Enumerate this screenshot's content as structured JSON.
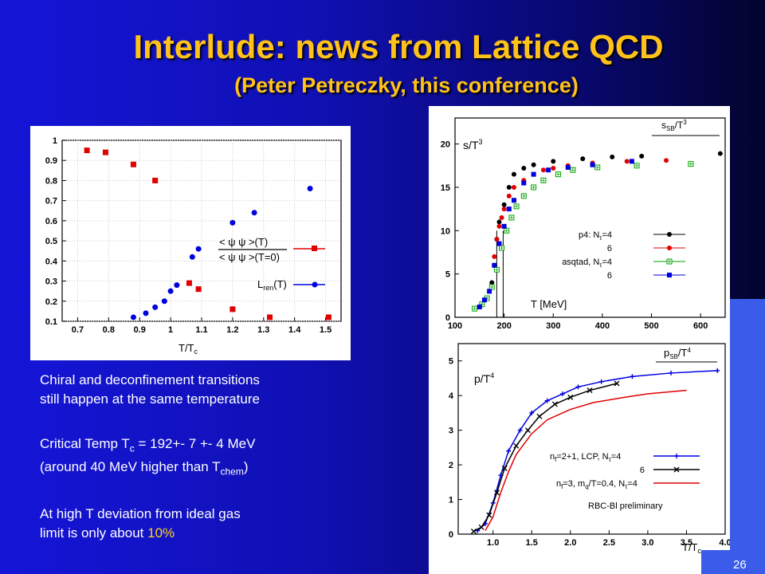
{
  "slide": {
    "title": "Interlude: news from Lattice QCD",
    "subtitle": "(Peter Petreczky, this conference)",
    "page_number": "26"
  },
  "text": {
    "para1_line1": "Chiral and deconfinement transitions",
    "para1_line2": "still happen at the same temperature",
    "para2_prefix": "Critical Temp T",
    "para2_sub": "c",
    "para2_rest": " = 192+- 7 +- 4 MeV",
    "para3_prefix": "(around 40 MeV higher than T",
    "para3_sub": "chem",
    "para3_suffix": ")",
    "para4_line1": "At high T deviation from ideal gas",
    "para4_line2_prefix": "limit is only about ",
    "para4_highlight": "10%"
  },
  "chart_data": [
    {
      "type": "scatter",
      "xlabel": "T/T",
      "xlabel_sub": "c",
      "xlim": [
        0.65,
        1.55
      ],
      "ylim": [
        0.1,
        1.0
      ],
      "xticks": [
        0.7,
        0.8,
        0.9,
        1,
        1.1,
        1.2,
        1.3,
        1.4,
        1.5
      ],
      "xtick_labels": [
        "0.7",
        "0.8",
        "0.9",
        "1",
        "1.1",
        "1.2",
        "1.3",
        "1.4",
        "1.5"
      ],
      "yticks": [
        0.1,
        0.2,
        0.3,
        0.4,
        0.5,
        0.6,
        0.7,
        0.8,
        0.9,
        1.0
      ],
      "ytick_labels": [
        "0.1",
        "0.2",
        "0.3",
        "0.4",
        "0.5",
        "0.6",
        "0.7",
        "0.8",
        "0.9",
        "1"
      ],
      "series": [
        {
          "name": "chiral",
          "color": "#e00000",
          "marker": "square",
          "x": [
            0.73,
            0.79,
            0.88,
            0.95,
            1.06,
            1.09,
            1.2,
            1.32,
            1.51
          ],
          "y": [
            0.95,
            0.94,
            0.88,
            0.8,
            0.29,
            0.26,
            0.16,
            0.12,
            0.12
          ]
        },
        {
          "name": "Lren",
          "color": "#0000e0",
          "marker": "circle",
          "x": [
            0.88,
            0.92,
            0.95,
            0.98,
            1.0,
            1.02,
            1.07,
            1.09,
            1.2,
            1.27,
            1.45
          ],
          "y": [
            0.12,
            0.14,
            0.17,
            0.2,
            0.25,
            0.28,
            0.42,
            0.46,
            0.59,
            0.64,
            0.76
          ]
        }
      ],
      "legend": {
        "entry1_num": "< ψ ψ >(T)",
        "entry1_den": "< ψ ψ >(T=0)",
        "entry2": "L",
        "entry2_sub": "ren",
        "entry2_suffix": "(T)"
      }
    },
    {
      "type": "scatter",
      "ylabel": "s/T",
      "ylabel_sup": "3",
      "xlabel": "T [MeV]",
      "sb_label": "s",
      "sb_label_sub": "SB",
      "sb_label_suffix": "/T",
      "sb_label_sup": "3",
      "xlim": [
        100,
        650
      ],
      "ylim": [
        0,
        23
      ],
      "xticks": [
        100,
        200,
        300,
        400,
        500,
        600
      ],
      "xtick_labels": [
        "100",
        "200",
        "300",
        "400",
        "500",
        "600"
      ],
      "yticks": [
        0,
        5,
        10,
        15,
        20
      ],
      "ytick_labels": [
        "0",
        "5",
        "10",
        "15",
        "20"
      ],
      "series": [
        {
          "name": "p4: Nτ=4",
          "color": "#000000",
          "marker": "circle",
          "x": [
            175,
            180,
            185,
            190,
            200,
            210,
            220,
            240,
            260,
            300,
            360,
            420,
            480,
            640
          ],
          "y": [
            4.0,
            6.0,
            9.0,
            11.0,
            13.0,
            15.0,
            16.5,
            17.2,
            17.6,
            18.0,
            18.3,
            18.5,
            18.6,
            18.9
          ]
        },
        {
          "name": "6",
          "color": "#e00000",
          "marker": "circle",
          "x": [
            180,
            185,
            190,
            195,
            200,
            210,
            220,
            240,
            260,
            280,
            300,
            330,
            380,
            450,
            530
          ],
          "y": [
            7.0,
            9.0,
            10.5,
            11.5,
            12.5,
            14.0,
            15.0,
            15.8,
            16.5,
            17.0,
            17.2,
            17.5,
            17.8,
            18.0,
            18.1
          ]
        },
        {
          "name": "asqtad, Nτ=4",
          "color": "#00a000",
          "marker": "open-square",
          "x": [
            140,
            155,
            165,
            175,
            185,
            195,
            205,
            215,
            225,
            240,
            260,
            280,
            310,
            340,
            390,
            470,
            580
          ],
          "y": [
            1.0,
            1.5,
            2.2,
            3.5,
            5.5,
            8.0,
            10.0,
            11.5,
            12.8,
            14.0,
            15.0,
            15.8,
            16.5,
            17.0,
            17.3,
            17.5,
            17.7
          ]
        },
        {
          "name": "6",
          "color": "#0000e0",
          "marker": "square",
          "x": [
            150,
            160,
            170,
            180,
            190,
            200,
            210,
            220,
            240,
            260,
            290,
            330,
            380,
            460
          ],
          "y": [
            1.2,
            2.0,
            3.0,
            6.0,
            8.5,
            10.5,
            12.5,
            13.5,
            15.5,
            16.5,
            17.0,
            17.3,
            17.6,
            18.0
          ]
        }
      ],
      "legend_labels": [
        "p4: N",
        "6",
        "asqtad, N",
        "6"
      ],
      "legend_suffix": "=4",
      "legend_tau": "τ"
    },
    {
      "type": "line",
      "ylabel": "p/T",
      "ylabel_sup": "4",
      "xlabel": "T/T",
      "xlabel_sub": "c",
      "sb_label": "p",
      "sb_label_sub": "SB",
      "sb_label_suffix": "/T",
      "sb_label_sup": "4",
      "note": "RBC-Bl preliminary",
      "xlim": [
        0.55,
        4.0
      ],
      "ylim": [
        0,
        5.5
      ],
      "xticks": [
        1.0,
        1.5,
        2.0,
        2.5,
        3.0,
        3.5,
        4.0
      ],
      "xtick_labels": [
        "1.0",
        "1.5",
        "2.0",
        "2.5",
        "3.0",
        "3.5",
        "4.0"
      ],
      "yticks": [
        0,
        1,
        2,
        3,
        4,
        5
      ],
      "ytick_labels": [
        "0",
        "1",
        "2",
        "3",
        "4",
        "5"
      ],
      "series": [
        {
          "name": "nf=2+1, LCP, Nτ=4",
          "color": "#0000e0",
          "marker": "plus",
          "x": [
            0.8,
            0.9,
            1.0,
            1.1,
            1.2,
            1.35,
            1.5,
            1.7,
            1.9,
            2.1,
            2.4,
            2.8,
            3.3,
            3.9
          ],
          "y": [
            0.1,
            0.3,
            0.9,
            1.7,
            2.4,
            3.0,
            3.5,
            3.85,
            4.05,
            4.25,
            4.4,
            4.55,
            4.65,
            4.72
          ]
        },
        {
          "name": "6",
          "color": "#000000",
          "marker": "cross",
          "x": [
            0.75,
            0.85,
            0.95,
            1.05,
            1.15,
            1.3,
            1.45,
            1.6,
            1.8,
            2.0,
            2.25,
            2.6
          ],
          "y": [
            0.08,
            0.2,
            0.55,
            1.2,
            1.9,
            2.55,
            3.0,
            3.4,
            3.75,
            3.95,
            4.15,
            4.35
          ]
        },
        {
          "name": "nf=3, mq/T=0.4, Nτ=4",
          "color": "#e00000",
          "marker": "none",
          "x": [
            0.9,
            1.0,
            1.1,
            1.2,
            1.3,
            1.5,
            1.7,
            2.0,
            2.3,
            2.7,
            3.0,
            3.5
          ],
          "y": [
            0.1,
            0.5,
            1.2,
            1.8,
            2.3,
            2.9,
            3.3,
            3.6,
            3.8,
            3.95,
            4.05,
            4.15
          ]
        }
      ],
      "legend": {
        "entry1": "n",
        "entry1_sub": "f",
        "entry1_suffix": "=2+1, LCP, N",
        "entry2": "6",
        "entry3": "n",
        "entry3_sub": "f",
        "entry3_mid": "=3, m",
        "entry3_sub2": "q",
        "entry3_suffix": "/T=0.4, N",
        "tau": "τ",
        "eq4": "=4"
      }
    }
  ]
}
